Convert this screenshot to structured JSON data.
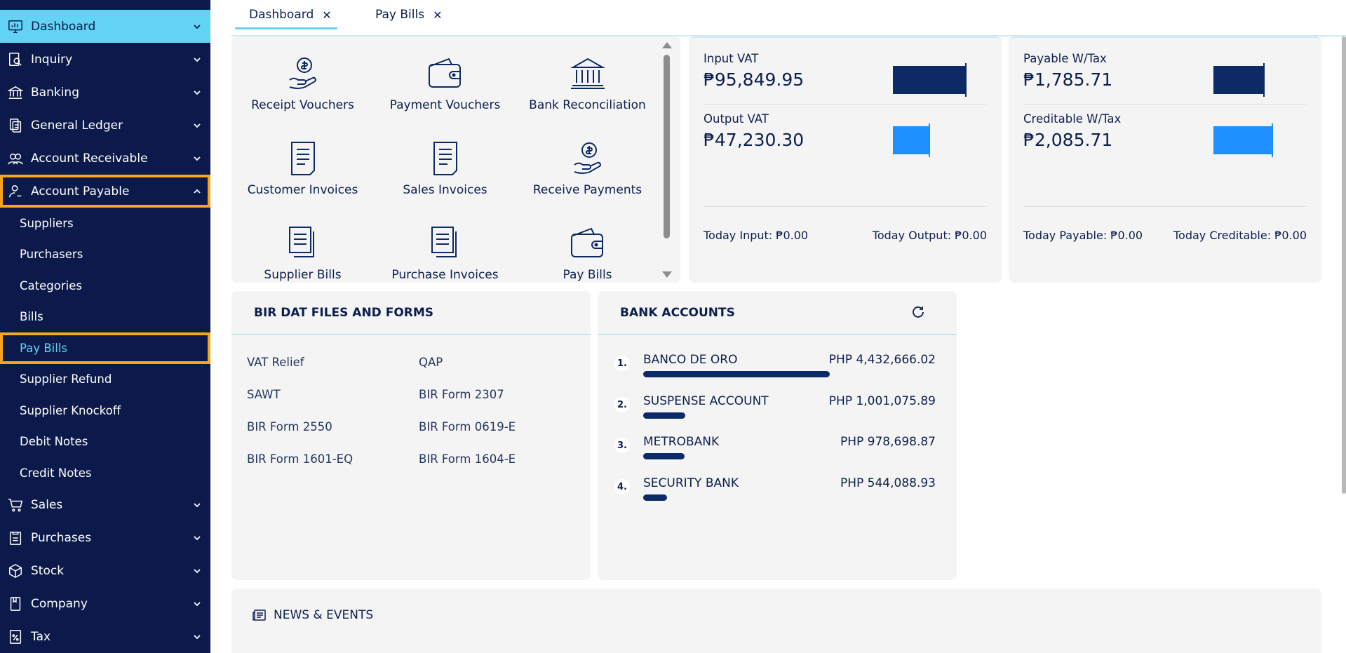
{
  "sidebar": {
    "items": [
      {
        "label": "Dashboard",
        "icon": "monitor-chart-icon"
      },
      {
        "label": "Inquiry",
        "icon": "search-document-icon"
      },
      {
        "label": "Banking",
        "icon": "bank-icon"
      },
      {
        "label": "General Ledger",
        "icon": "ledger-icon"
      },
      {
        "label": "Account Receivable",
        "icon": "users-icon"
      },
      {
        "label": "Account Payable",
        "icon": "user-icon"
      }
    ],
    "sub_items": [
      "Suppliers",
      "Purchasers",
      "Categories",
      "Bills",
      "Pay Bills",
      "Supplier Refund",
      "Supplier Knockoff",
      "Debit Notes",
      "Credit Notes"
    ],
    "lower_items": [
      {
        "label": "Sales",
        "icon": "cart-icon"
      },
      {
        "label": "Purchases",
        "icon": "clipboard-icon"
      },
      {
        "label": "Stock",
        "icon": "box-icon"
      },
      {
        "label": "Company",
        "icon": "book-icon"
      },
      {
        "label": "Tax",
        "icon": "percent-doc-icon"
      }
    ]
  },
  "tabs": [
    {
      "label": "Dashboard",
      "active": true
    },
    {
      "label": "Pay Bills",
      "active": false
    }
  ],
  "quick_links": [
    {
      "label": "Receipt Vouchers",
      "icon": "hand-coin-icon"
    },
    {
      "label": "Payment Vouchers",
      "icon": "wallet-icon"
    },
    {
      "label": "Bank Reconciliation",
      "icon": "bank-icon"
    },
    {
      "label": "Customer Invoices",
      "icon": "document-icon"
    },
    {
      "label": "Sales Invoices",
      "icon": "document-icon"
    },
    {
      "label": "Receive Payments",
      "icon": "hand-coin-icon"
    },
    {
      "label": "Supplier Bills",
      "icon": "documents-icon"
    },
    {
      "label": "Purchase Invoices",
      "icon": "documents-icon"
    },
    {
      "label": "Pay Bills",
      "icon": "wallet-icon"
    }
  ],
  "vat": {
    "input_label": "Input VAT",
    "input_value": "₱95,849.95",
    "output_label": "Output VAT",
    "output_value": "₱47,230.30",
    "today_input": "Today Input: ₱0.00",
    "today_output": "Today Output: ₱0.00"
  },
  "wtax": {
    "payable_label": "Payable W/Tax",
    "payable_value": "₱1,785.71",
    "creditable_label": "Creditable W/Tax",
    "creditable_value": "₱2,085.71",
    "today_payable": "Today Payable: ₱0.00",
    "today_creditable": "Today Creditable: ₱0.00"
  },
  "bir": {
    "title": "BIR DAT FILES AND FORMS",
    "links": [
      "VAT Relief",
      "QAP",
      "SAWT",
      "BIR Form 2307",
      "BIR Form 2550",
      "BIR Form 0619-E",
      "BIR Form 1601-EQ",
      "BIR Form 1604-E"
    ]
  },
  "bank": {
    "title": "BANK ACCOUNTS",
    "accounts": [
      {
        "num": "1.",
        "name": "BANCO DE ORO",
        "amount": "PHP 4,432,666.02",
        "share": 1.0
      },
      {
        "num": "2.",
        "name": "SUSPENSE ACCOUNT",
        "amount": "PHP 1,001,075.89",
        "share": 0.226
      },
      {
        "num": "3.",
        "name": "METROBANK",
        "amount": "PHP 978,698.87",
        "share": 0.221
      },
      {
        "num": "4.",
        "name": "SECURITY BANK",
        "amount": "PHP 544,088.93",
        "share": 0.123
      }
    ]
  },
  "news": {
    "title": "NEWS & EVENTS"
  },
  "colors": {
    "sidebar": "#0b1a4a",
    "accent": "#63d3f5",
    "highlight": "#f7a51c",
    "bar_dark": "#0b2a66",
    "bar_light": "#1e90ff"
  }
}
